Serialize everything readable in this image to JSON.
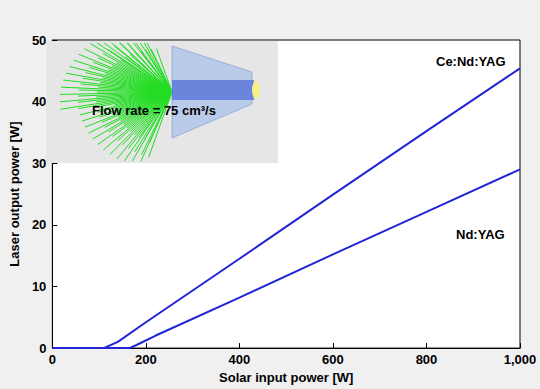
{
  "chart_data": {
    "type": "line",
    "x_label": "Solar input power [W]",
    "y_label": "Laser output power [W]",
    "annotations": [
      "Flow rate = 75 cm³/s"
    ],
    "series": [
      {
        "name": "Ce:Nd:YAG",
        "color": "#2323d8",
        "x": [
          0,
          100,
          110,
          140,
          200,
          400,
          600,
          800,
          1000
        ],
        "values": [
          0,
          0,
          0,
          1,
          4.2,
          14.5,
          24.9,
          35.2,
          45.4
        ]
      },
      {
        "name": "Nd:YAG",
        "color": "#2323d8",
        "x": [
          0,
          150,
          165,
          180,
          220,
          400,
          600,
          800,
          1000
        ],
        "values": [
          0,
          0,
          0,
          0.5,
          2,
          8.2,
          15.2,
          22.1,
          29
        ]
      }
    ],
    "xlim": [
      0,
      1000
    ],
    "xticks": [
      0,
      200,
      400,
      600,
      800,
      1000
    ],
    "ylim": [
      0,
      50
    ],
    "yticks": [
      0,
      10,
      20,
      30,
      40,
      50
    ],
    "grid": false
  }
}
